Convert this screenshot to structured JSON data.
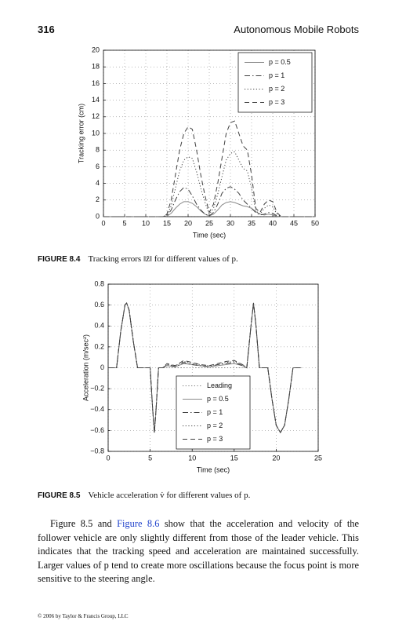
{
  "header": {
    "page_number": "316",
    "running_title": "Autonomous Mobile Robots"
  },
  "chart_data": [
    {
      "type": "line",
      "x_label": "Time (sec)",
      "y_label": "Tracking error (cm)",
      "x": [
        0,
        14,
        15,
        16,
        17,
        18,
        19,
        20,
        21,
        22,
        23,
        24,
        25,
        26,
        27,
        28,
        29,
        30,
        31,
        32,
        33,
        34,
        35,
        36,
        37,
        38,
        39,
        40,
        41,
        42,
        50
      ],
      "series": [
        {
          "name": "p = 0.5",
          "color": "#8a8a8a",
          "dash": "solid",
          "values": [
            0,
            0,
            0.05,
            0.4,
            1,
            1.5,
            1.8,
            1.8,
            1.6,
            1.2,
            0.7,
            0.3,
            0.1,
            0.3,
            0.8,
            1.4,
            1.7,
            1.8,
            1.7,
            1.5,
            1.3,
            1.2,
            1,
            0.6,
            0.3,
            0.2,
            0.3,
            0.2,
            0.05,
            0,
            0
          ]
        },
        {
          "name": "p = 1",
          "color": "#404040",
          "dash": "dashdot",
          "values": [
            0,
            0,
            0.1,
            0.8,
            2,
            3,
            3.5,
            3.3,
            2.5,
            1.5,
            0.8,
            0.3,
            0.1,
            0.5,
            1.5,
            2.8,
            3.4,
            3.6,
            3.3,
            2.8,
            2,
            1.5,
            1,
            0.5,
            0.2,
            0.3,
            0.5,
            0.4,
            0.1,
            0,
            0
          ]
        },
        {
          "name": "p = 2",
          "color": "#404040",
          "dash": "dotted",
          "values": [
            0,
            0,
            0.2,
            1.3,
            3.4,
            5.5,
            6.8,
            7.2,
            7,
            5.4,
            3.4,
            1.7,
            0.3,
            1,
            2.7,
            4.8,
            6.8,
            7.6,
            7.8,
            6.8,
            5.8,
            5.5,
            3.4,
            0.7,
            0.3,
            1,
            1.4,
            1.2,
            0.3,
            0,
            0
          ]
        },
        {
          "name": "p = 3",
          "color": "#404040",
          "dash": "dashed",
          "values": [
            0,
            0,
            0.3,
            2,
            5,
            8,
            10,
            10.8,
            10.5,
            8,
            5,
            2.5,
            0.5,
            1.5,
            4,
            7,
            10,
            11.3,
            11.5,
            10,
            8.5,
            8,
            5,
            1,
            0.5,
            1.5,
            2,
            1.8,
            0.5,
            0,
            0
          ]
        }
      ],
      "xlim": [
        0,
        50
      ],
      "xticks": [
        0,
        5,
        10,
        15,
        20,
        25,
        30,
        35,
        40,
        45,
        50
      ],
      "ylim": [
        0,
        20
      ],
      "yticks": [
        0,
        2,
        4,
        6,
        8,
        10,
        12,
        14,
        16,
        18,
        20
      ],
      "grid": true,
      "legend": "upper right"
    },
    {
      "type": "line",
      "x_label": "Time (sec)",
      "y_label": "Acceleration (m/sec²)",
      "x": [
        0,
        1,
        1.5,
        2,
        2.2,
        2.5,
        3,
        3.5,
        5,
        5.3,
        5.5,
        5.7,
        6,
        6.5,
        7,
        8,
        9,
        10,
        11,
        12,
        13,
        14,
        15,
        16,
        16.5,
        17,
        17.3,
        17.6,
        18,
        19,
        19.5,
        20,
        20.5,
        21,
        21.5,
        22,
        23
      ],
      "series": [
        {
          "name": "Leading",
          "color": "#707070",
          "dash": "dotted",
          "values": [
            0,
            0,
            0.35,
            0.6,
            0.62,
            0.55,
            0.25,
            0,
            0,
            -0.4,
            -0.62,
            -0.4,
            0,
            0,
            0,
            0,
            0,
            0,
            0,
            0,
            0,
            0,
            0,
            0,
            0,
            0.4,
            0.62,
            0.4,
            0,
            0,
            -0.3,
            -0.55,
            -0.62,
            -0.55,
            -0.3,
            0,
            0
          ]
        },
        {
          "name": "p = 0.5",
          "color": "#8a8a8a",
          "dash": "solid",
          "values": [
            0,
            0,
            0.35,
            0.6,
            0.62,
            0.55,
            0.25,
            0,
            0,
            -0.4,
            -0.62,
            -0.4,
            0,
            0,
            0.02,
            0.01,
            0.04,
            0.03,
            0.02,
            0.01,
            0.02,
            0.03,
            0.04,
            0.02,
            0,
            0.4,
            0.62,
            0.4,
            0,
            0,
            -0.3,
            -0.55,
            -0.62,
            -0.55,
            -0.3,
            0,
            0
          ]
        },
        {
          "name": "p = 1",
          "color": "#404040",
          "dash": "dashdot",
          "values": [
            0,
            0,
            0.35,
            0.6,
            0.62,
            0.55,
            0.25,
            0,
            0,
            -0.4,
            -0.62,
            -0.4,
            0,
            0,
            0.03,
            0.01,
            0.05,
            0.03,
            0.02,
            0.01,
            0.03,
            0.04,
            0.05,
            0.02,
            0,
            0.4,
            0.62,
            0.4,
            0,
            0,
            -0.3,
            -0.55,
            -0.62,
            -0.55,
            -0.3,
            0,
            0
          ]
        },
        {
          "name": "p = 2",
          "color": "#404040",
          "dash": "dotted",
          "values": [
            0,
            0,
            0.35,
            0.6,
            0.62,
            0.55,
            0.25,
            0,
            0,
            -0.4,
            -0.62,
            -0.4,
            0,
            0,
            0.03,
            0.02,
            0.06,
            0.04,
            0.03,
            0.02,
            0.03,
            0.05,
            0.06,
            0.03,
            0,
            0.4,
            0.62,
            0.4,
            0,
            0,
            -0.3,
            -0.55,
            -0.62,
            -0.55,
            -0.3,
            0,
            0
          ]
        },
        {
          "name": "p = 3",
          "color": "#404040",
          "dash": "dashed",
          "values": [
            0,
            0,
            0.35,
            0.6,
            0.62,
            0.55,
            0.25,
            0,
            0,
            -0.4,
            -0.62,
            -0.4,
            0,
            0,
            0.04,
            0.02,
            0.07,
            0.05,
            0.03,
            0.02,
            0.04,
            0.06,
            0.07,
            0.03,
            0,
            0.4,
            0.62,
            0.4,
            0,
            0,
            -0.3,
            -0.55,
            -0.62,
            -0.55,
            -0.3,
            0,
            0
          ]
        }
      ],
      "xlim": [
        0,
        25
      ],
      "xticks": [
        0,
        5,
        10,
        15,
        20,
        25
      ],
      "ylim": [
        -0.8,
        0.8
      ],
      "yticks": [
        {
          "value": -0.8,
          "label": "−0.8"
        },
        {
          "value": -0.6,
          "label": "−0.6"
        },
        {
          "value": -0.4,
          "label": "−0.4"
        },
        {
          "value": -0.2,
          "label": "−0.2"
        },
        0,
        0.2,
        0.4,
        0.6,
        0.8
      ],
      "grid": true,
      "legend": "lower center"
    }
  ],
  "captions": [
    {
      "label": "FIGURE 8.4",
      "text": "Tracking errors ‖z̃‖ for different values of p."
    },
    {
      "label": "FIGURE 8.5",
      "text": "Vehicle acceleration v̇ for different values of p."
    }
  ],
  "paragraph": {
    "before": "Figure 8.5 and ",
    "link": "Figure 8.6",
    "after": " show that the acceleration and velocity of the follower vehicle are only slightly different from those of the leader vehicle. This indicates that the tracking speed and acceleration are maintained successfully. Larger values of p tend to create more oscillations because the focus point is more sensitive to the steering angle."
  },
  "footer": "© 2006 by Taylor & Francis Group, LLC"
}
